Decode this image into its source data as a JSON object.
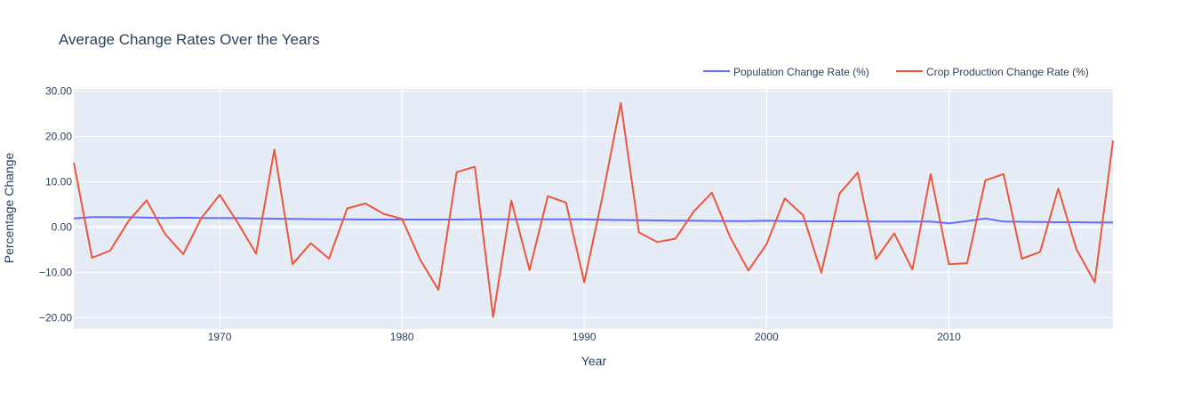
{
  "chart_data": {
    "type": "line",
    "title": "Average Change Rates Over the Years",
    "xlabel": "Year",
    "ylabel": "Percentage Change",
    "xlim": [
      1962,
      2019
    ],
    "ylim": [
      -22.5,
      30.5
    ],
    "xticks": [
      1970,
      1980,
      1990,
      2000,
      2010
    ],
    "yticks": [
      -20,
      -10,
      0,
      10,
      20,
      30
    ],
    "ytick_labels": [
      "−20.00",
      "−10.00",
      "0.00",
      "10.00",
      "20.00",
      "30.00"
    ],
    "grid": true,
    "legend_position": "top-right",
    "colors": {
      "plot_bg": "#E5ECF6",
      "grid": "#ffffff"
    },
    "x": [
      1962,
      1963,
      1964,
      1965,
      1966,
      1967,
      1968,
      1969,
      1970,
      1971,
      1972,
      1973,
      1974,
      1975,
      1976,
      1977,
      1978,
      1979,
      1980,
      1981,
      1982,
      1983,
      1984,
      1985,
      1986,
      1987,
      1988,
      1989,
      1990,
      1991,
      1992,
      1993,
      1994,
      1995,
      1996,
      1997,
      1998,
      1999,
      2000,
      2001,
      2002,
      2003,
      2004,
      2005,
      2006,
      2007,
      2008,
      2009,
      2010,
      2011,
      2012,
      2013,
      2014,
      2015,
      2016,
      2017,
      2018,
      2019
    ],
    "series": [
      {
        "name": "Population Change Rate (%)",
        "color": "#636EFA",
        "values": [
          1.9,
          2.2,
          2.2,
          2.15,
          2.05,
          2.0,
          2.05,
          2.0,
          1.95,
          1.95,
          1.9,
          1.85,
          1.8,
          1.75,
          1.7,
          1.7,
          1.65,
          1.65,
          1.65,
          1.65,
          1.65,
          1.65,
          1.7,
          1.7,
          1.7,
          1.7,
          1.7,
          1.7,
          1.7,
          1.6,
          1.55,
          1.5,
          1.45,
          1.4,
          1.4,
          1.35,
          1.3,
          1.3,
          1.4,
          1.3,
          1.25,
          1.25,
          1.25,
          1.25,
          1.2,
          1.2,
          1.2,
          1.2,
          0.8,
          1.3,
          1.9,
          1.2,
          1.15,
          1.1,
          1.05,
          1.05,
          1.0,
          1.0
        ]
      },
      {
        "name": "Crop Production Change Rate (%)",
        "color": "#EF553B",
        "values": [
          14.2,
          -6.8,
          -5.2,
          1.3,
          5.9,
          -1.5,
          -6.0,
          2.0,
          7.1,
          0.9,
          -5.9,
          17.1,
          -8.2,
          -3.6,
          -7.0,
          4.1,
          5.2,
          2.9,
          1.8,
          -7.2,
          -13.9,
          12.1,
          13.3,
          -19.9,
          5.8,
          -9.5,
          6.8,
          5.4,
          -12.2,
          6.8,
          27.4,
          -1.2,
          -3.3,
          -2.6,
          3.4,
          7.6,
          -2.2,
          -9.6,
          -3.8,
          6.3,
          2.6,
          -10.1,
          7.4,
          12.0,
          -7.1,
          -1.4,
          -9.4,
          11.7,
          -8.2,
          -8.0,
          10.3,
          11.7,
          -7.0,
          -5.5,
          8.5,
          -5.0,
          -12.2,
          19.1
        ]
      }
    ]
  }
}
